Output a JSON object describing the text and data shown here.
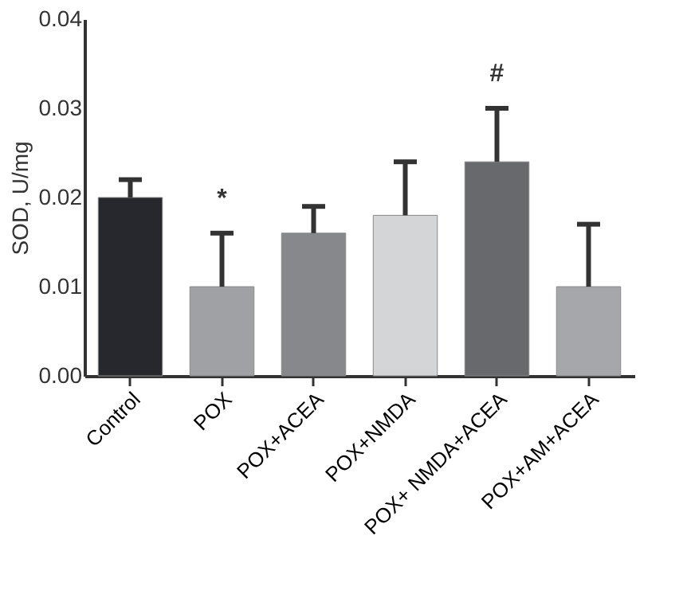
{
  "chart_data": {
    "type": "bar",
    "ylabel": "SOD, U/mg",
    "categories": [
      "Control",
      "POX",
      "POX+ACEA",
      "POX+NMDA",
      "POX+ NMDA+ACEA",
      "POX+AM+ACEA"
    ],
    "values": [
      0.02,
      0.01,
      0.016,
      0.018,
      0.024,
      0.01
    ],
    "colors": [
      "#26282d",
      "#a0a1a5",
      "#87888c",
      "#d4d5d7",
      "#68696d",
      "#a6a7ab"
    ],
    "errors": [
      [
        0.02,
        0.022
      ],
      [
        0.01,
        0.016
      ],
      [
        0.016,
        0.019
      ],
      [
        0.018,
        0.024
      ],
      [
        0.024,
        0.03
      ],
      [
        0.01,
        0.017
      ]
    ],
    "ylim": [
      0,
      0.04
    ],
    "yticks": [
      {
        "value": 0,
        "label": "0.00"
      },
      0.01,
      0.02,
      0.03,
      0.04
    ],
    "value_labels": [
      null,
      "*",
      null,
      null,
      "#",
      null
    ],
    "grid": false
  }
}
